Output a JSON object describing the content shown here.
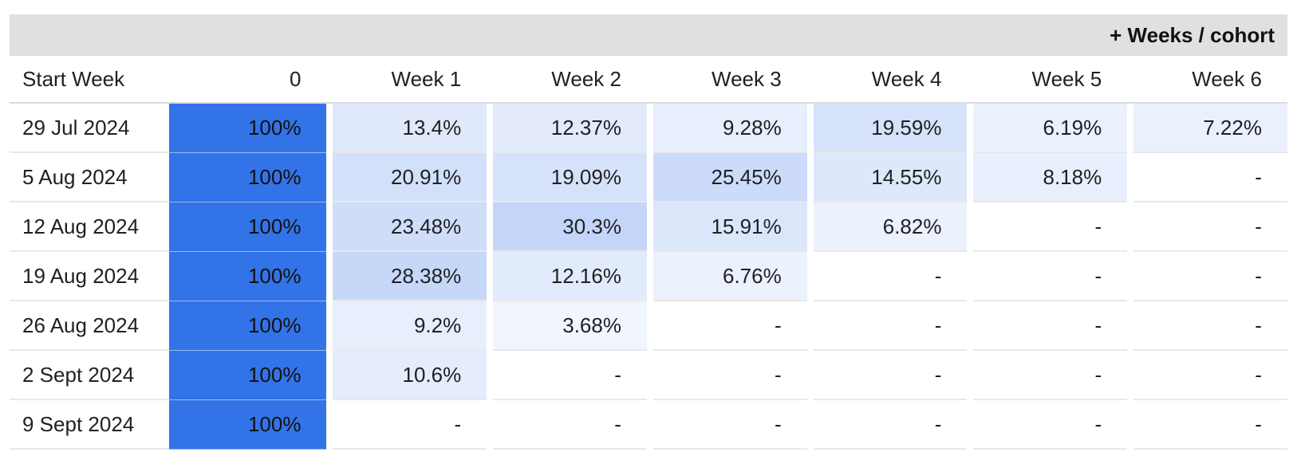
{
  "title_action": "+ Weeks / cohort",
  "chart_data": {
    "type": "table",
    "columns": [
      "Start Week",
      "0",
      "Week 1",
      "Week 2",
      "Week 3",
      "Week 4",
      "Week 5",
      "Week 6"
    ],
    "rows": [
      {
        "start": "29 Jul 2024",
        "cells": [
          "100%",
          "13.4%",
          "12.37%",
          "9.28%",
          "19.59%",
          "6.19%",
          "7.22%"
        ],
        "values": [
          100,
          13.4,
          12.37,
          9.28,
          19.59,
          6.19,
          7.22
        ]
      },
      {
        "start": "5 Aug 2024",
        "cells": [
          "100%",
          "20.91%",
          "19.09%",
          "25.45%",
          "14.55%",
          "8.18%",
          "-"
        ],
        "values": [
          100,
          20.91,
          19.09,
          25.45,
          14.55,
          8.18,
          null
        ]
      },
      {
        "start": "12 Aug 2024",
        "cells": [
          "100%",
          "23.48%",
          "30.3%",
          "15.91%",
          "6.82%",
          "-",
          "-"
        ],
        "values": [
          100,
          23.48,
          30.3,
          15.91,
          6.82,
          null,
          null
        ]
      },
      {
        "start": "19 Aug 2024",
        "cells": [
          "100%",
          "28.38%",
          "12.16%",
          "6.76%",
          "-",
          "-",
          "-"
        ],
        "values": [
          100,
          28.38,
          12.16,
          6.76,
          null,
          null,
          null
        ]
      },
      {
        "start": "26 Aug 2024",
        "cells": [
          "100%",
          "9.2%",
          "3.68%",
          "-",
          "-",
          "-",
          "-"
        ],
        "values": [
          100,
          9.2,
          3.68,
          null,
          null,
          null,
          null
        ]
      },
      {
        "start": "2 Sept 2024",
        "cells": [
          "100%",
          "10.6%",
          "-",
          "-",
          "-",
          "-",
          "-"
        ],
        "values": [
          100,
          10.6,
          null,
          null,
          null,
          null,
          null
        ]
      },
      {
        "start": "9 Sept 2024",
        "cells": [
          "100%",
          "-",
          "-",
          "-",
          "-",
          "-",
          "-"
        ],
        "values": [
          100,
          null,
          null,
          null,
          null,
          null,
          null
        ]
      }
    ]
  },
  "colors": {
    "full": "#3373e8",
    "heat_high": "#c3d5f8",
    "heat_low": "#f7f9fe",
    "header_band": "#e0e0e0"
  }
}
